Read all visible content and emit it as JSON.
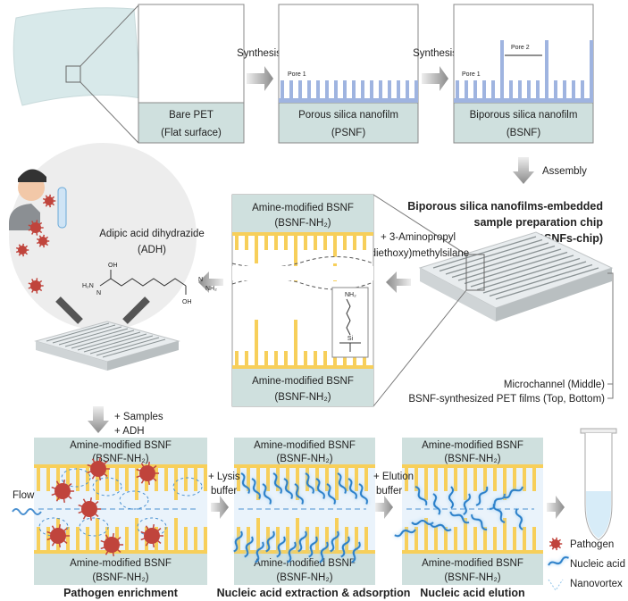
{
  "colors": {
    "silica_blue": "#9fb4e0",
    "amine_yellow": "#f7cf5a",
    "substrate": "#cfe0de",
    "channel": "#eaf3fb",
    "pathogen": "#c0443c",
    "arrow_grey": "#9a9a9a",
    "flow_blue": "#4a90d0"
  },
  "top": {
    "box1": {
      "line1": "Bare PET",
      "line2": "(Flat surface)"
    },
    "step1": "Synthesis",
    "box2": {
      "pore": "Pore 1",
      "line1": "Porous silica nanofilm",
      "line2": "(PSNF)"
    },
    "step2": "Synthesis",
    "box3": {
      "pore1": "Pore 1",
      "pore2": "Pore 2",
      "line1": "Biporous silica nanofilm",
      "line2": "(BSNF)"
    },
    "assembly": "Assembly"
  },
  "chip": {
    "title_line1": "Biporous silica nanofilms-embedded",
    "title_line2": "sample preparation chip",
    "title_line3": "(BSNFs-chip)",
    "label_middle": "Microchannel (Middle)",
    "label_films": "BSNF-synthesized PET films (Top, Bottom)"
  },
  "amine_panel": {
    "top_line1": "Amine-modified BSNF",
    "top_line2": "(BSNF-NH₂)",
    "bottom_line1": "Amine-modified BSNF",
    "bottom_line2": "(BSNF-NH₂)",
    "reagent_line1": "+ 3-Aminopropyl",
    "reagent_line2": "(diethoxy)methylsilane",
    "chem_nh2": "NH₂",
    "chem_si": "Si"
  },
  "adh": {
    "line1": "Adipic acid dihydrazide",
    "line2": "(ADH)",
    "chem_oh1": "OH",
    "chem_oh2": "OH",
    "chem_h2n": "H₂N",
    "chem_n1": "N",
    "chem_n2": "N",
    "chem_nh2": "NH₂",
    "add1": "+ Samples",
    "add2": "+ ADH"
  },
  "bottom": {
    "flow": "Flow",
    "lysis_line1": "+ Lysis",
    "lysis_line2": "buffer",
    "elution_line1": "+ Elution",
    "elution_line2": "buffer",
    "panels": [
      {
        "top1": "Amine-modified BSNF",
        "top2": "(BSNF-NH₂)",
        "bot1": "Amine-modified BSNF",
        "bot2": "(BSNF-NH₂)",
        "caption": "Pathogen enrichment"
      },
      {
        "top1": "Amine-modified BSNF",
        "top2": "(BSNF-NH₂)",
        "bot1": "Amine-modified BSNF",
        "bot2": "(BSNF-NH₂)",
        "caption": "Nucleic acid extraction & adsorption"
      },
      {
        "top1": "Amine-modified BSNF",
        "top2": "(BSNF-NH₂)",
        "bot1": "Amine-modified BSNF",
        "bot2": "(BSNF-NH₂)",
        "caption": "Nucleic acid elution"
      }
    ],
    "legend": [
      {
        "icon": "pathogen-icon",
        "label": "Pathogen"
      },
      {
        "icon": "nucleic-acid-icon",
        "label": "Nucleic acid"
      },
      {
        "icon": "nanovortex-icon",
        "label": "Nanovortex"
      }
    ]
  }
}
